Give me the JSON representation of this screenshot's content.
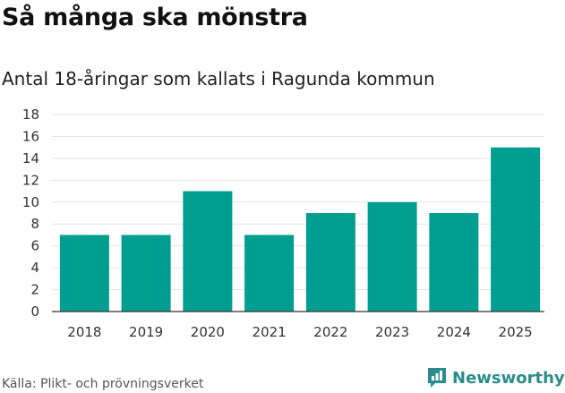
{
  "chart_data": {
    "type": "bar",
    "title": "Så många ska mönstra",
    "subtitle": "Antal 18-åringar som kallats i Ragunda kommun",
    "categories": [
      "2018",
      "2019",
      "2020",
      "2021",
      "2022",
      "2023",
      "2024",
      "2025"
    ],
    "values": [
      7,
      7,
      11,
      7,
      9,
      10,
      9,
      15
    ],
    "ylim": [
      0,
      18
    ],
    "yticks": [
      0,
      2,
      4,
      6,
      8,
      10,
      12,
      14,
      16,
      18
    ],
    "xlabel": "",
    "ylabel": "",
    "grid": true,
    "bar_color": "#009e91"
  },
  "source": "Källa: Plikt- och prövningsverket",
  "brand": {
    "name": "Newsworthy",
    "icon": "newsworthy-logo-icon",
    "color": "#2a8c8c"
  }
}
